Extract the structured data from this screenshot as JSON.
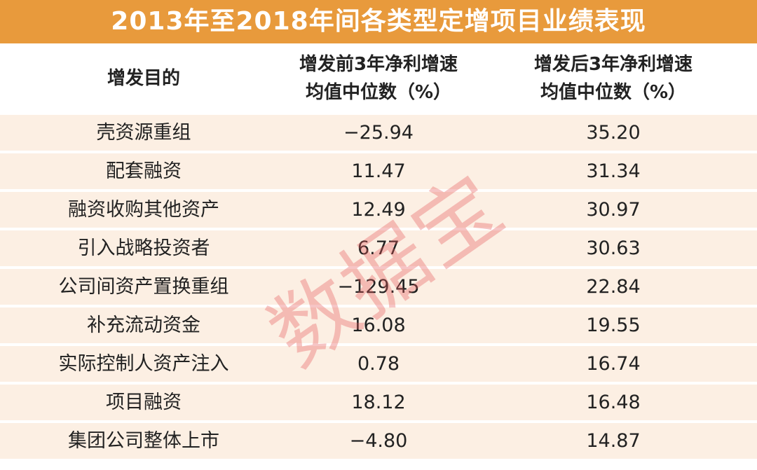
{
  "title": "2013年至2018年间各类型定增项目业绩表现",
  "table": {
    "header": [
      [
        "增发目的"
      ],
      [
        "增发前3年净利增速",
        "均值中位数（%）"
      ],
      [
        "增发后3年净利增速",
        "均值中位数（%）"
      ]
    ],
    "rows": [
      [
        "壳资源重组",
        "−25.94",
        "35.20"
      ],
      [
        "配套融资",
        "11.47",
        "31.34"
      ],
      [
        "融资收购其他资产",
        "12.49",
        "30.97"
      ],
      [
        "引入战略投资者",
        "6.77",
        "30.63"
      ],
      [
        "公司间资产置换重组",
        "−129.45",
        "22.84"
      ],
      [
        "补充流动资金",
        "16.08",
        "19.55"
      ],
      [
        "实际控制人资产注入",
        "0.78",
        "16.74"
      ],
      [
        "项目融资",
        "18.12",
        "16.48"
      ],
      [
        "集团公司整体上市",
        "−4.80",
        "14.87"
      ]
    ]
  },
  "watermark": "数据宝"
}
